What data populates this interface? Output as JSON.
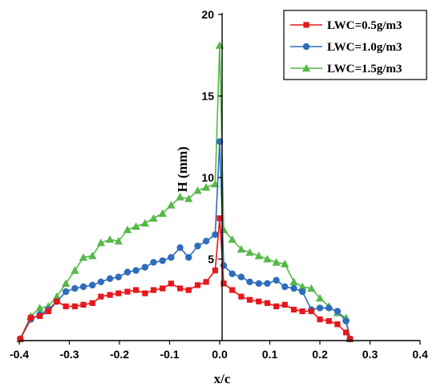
{
  "chart_data": {
    "type": "line",
    "xlabel": "x/c",
    "ylabel": "H (mm)",
    "xlim": [
      -0.4,
      0.4
    ],
    "ylim": [
      0,
      20
    ],
    "xticks": [
      "-0.4",
      "-0.3",
      "-0.2",
      "-0.1",
      "0.0",
      "0.1",
      "0.2",
      "0.3",
      "0.4"
    ],
    "yticks": [
      "5",
      "10",
      "15",
      "20"
    ],
    "legend_position": "top-right",
    "series": [
      {
        "name": "LWC=0.5g/m3",
        "color": "#e5171c",
        "marker": "square",
        "x": [
          -0.398,
          -0.377,
          -0.359,
          -0.342,
          -0.325,
          -0.307,
          -0.289,
          -0.272,
          -0.254,
          -0.237,
          -0.219,
          -0.202,
          -0.184,
          -0.167,
          -0.149,
          -0.132,
          -0.114,
          -0.097,
          -0.079,
          -0.062,
          -0.044,
          -0.027,
          -0.009,
          0.0,
          0.008,
          0.025,
          0.043,
          0.06,
          0.078,
          0.095,
          0.113,
          0.13,
          0.148,
          0.165,
          0.183,
          0.2,
          0.218,
          0.235,
          0.252,
          0.26
        ],
        "y": [
          0.1,
          1.4,
          1.5,
          1.8,
          2.4,
          2.1,
          2.1,
          2.2,
          2.3,
          2.7,
          2.8,
          2.9,
          3.0,
          3.1,
          2.9,
          3.1,
          3.2,
          3.5,
          3.2,
          3.1,
          3.4,
          3.6,
          4.3,
          7.5,
          3.5,
          3.1,
          2.7,
          2.5,
          2.4,
          2.3,
          2.1,
          2.2,
          1.9,
          1.8,
          1.8,
          1.3,
          1.2,
          1.0,
          0.5,
          0.1
        ]
      },
      {
        "name": "LWC=1.0g/m3",
        "color": "#2e6dbb",
        "marker": "circle",
        "x": [
          -0.398,
          -0.377,
          -0.359,
          -0.342,
          -0.325,
          -0.307,
          -0.289,
          -0.272,
          -0.254,
          -0.237,
          -0.219,
          -0.202,
          -0.184,
          -0.167,
          -0.149,
          -0.132,
          -0.114,
          -0.097,
          -0.079,
          -0.062,
          -0.044,
          -0.027,
          -0.009,
          0.0,
          0.008,
          0.025,
          0.043,
          0.06,
          0.078,
          0.095,
          0.113,
          0.13,
          0.148,
          0.165,
          0.183,
          0.2,
          0.218,
          0.235,
          0.252,
          0.26
        ],
        "y": [
          0.1,
          1.3,
          1.6,
          1.9,
          2.4,
          3.0,
          3.2,
          3.3,
          3.4,
          3.6,
          3.8,
          3.9,
          4.2,
          4.3,
          4.5,
          4.8,
          4.9,
          5.1,
          5.7,
          5.1,
          5.8,
          6.1,
          6.5,
          12.2,
          4.6,
          4.1,
          3.9,
          3.6,
          3.5,
          3.5,
          3.7,
          3.3,
          3.2,
          3.0,
          1.9,
          2.0,
          2.0,
          1.8,
          1.2,
          0.1
        ]
      },
      {
        "name": "LWC=1.5g/m3",
        "color": "#56b848",
        "marker": "triangle",
        "x": [
          -0.398,
          -0.377,
          -0.359,
          -0.342,
          -0.325,
          -0.307,
          -0.289,
          -0.272,
          -0.254,
          -0.237,
          -0.219,
          -0.202,
          -0.184,
          -0.167,
          -0.149,
          -0.132,
          -0.114,
          -0.097,
          -0.079,
          -0.062,
          -0.044,
          -0.027,
          -0.009,
          0.0,
          0.008,
          0.025,
          0.043,
          0.06,
          0.078,
          0.095,
          0.113,
          0.13,
          0.148,
          0.165,
          0.183,
          0.2,
          0.218,
          0.235,
          0.252,
          0.26
        ],
        "y": [
          0.1,
          1.5,
          2.0,
          2.1,
          2.7,
          3.5,
          4.3,
          5.1,
          5.2,
          6.0,
          6.2,
          6.1,
          6.8,
          7.0,
          7.2,
          7.5,
          7.8,
          8.3,
          8.8,
          8.7,
          9.2,
          9.4,
          9.6,
          18.1,
          6.8,
          6.2,
          5.6,
          5.4,
          5.2,
          5.0,
          4.8,
          4.7,
          3.6,
          3.3,
          3.2,
          2.6,
          2.1,
          1.7,
          1.4,
          0.1
        ]
      }
    ]
  }
}
